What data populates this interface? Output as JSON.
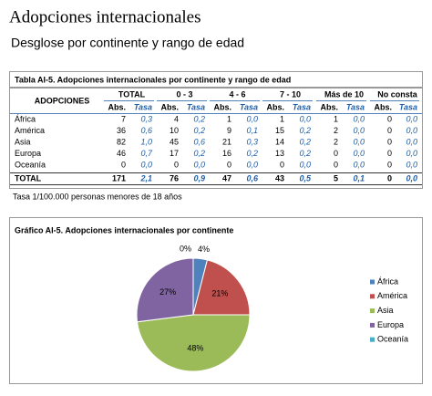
{
  "header": {
    "title": "Adopciones internacionales",
    "subtitle": "Desglose por continente y rango de edad"
  },
  "table": {
    "title": "Tabla AI-5. Adopciones internacionales por continente y rango de edad",
    "row_header": "ADOPCIONES",
    "groups": [
      "TOTAL",
      "0 - 3",
      "4 - 6",
      "7 - 10",
      "Más de 10",
      "No consta"
    ],
    "sub_headers": [
      "Abs.",
      "Tasa"
    ],
    "rows": [
      {
        "label": "África",
        "cells": [
          "7",
          "0,3",
          "4",
          "0,2",
          "1",
          "0,0",
          "1",
          "0,0",
          "1",
          "0,0",
          "0",
          "0,0"
        ]
      },
      {
        "label": "América",
        "cells": [
          "36",
          "0,6",
          "10",
          "0,2",
          "9",
          "0,1",
          "15",
          "0,2",
          "2",
          "0,0",
          "0",
          "0,0"
        ]
      },
      {
        "label": "Asia",
        "cells": [
          "82",
          "1,0",
          "45",
          "0,6",
          "21",
          "0,3",
          "14",
          "0,2",
          "2",
          "0,0",
          "0",
          "0,0"
        ]
      },
      {
        "label": "Europa",
        "cells": [
          "46",
          "0,7",
          "17",
          "0,2",
          "16",
          "0,2",
          "13",
          "0,2",
          "0",
          "0,0",
          "0",
          "0,0"
        ]
      },
      {
        "label": "Oceanía",
        "cells": [
          "0",
          "0,0",
          "0",
          "0,0",
          "0",
          "0,0",
          "0",
          "0,0",
          "0",
          "0,0",
          "0",
          "0,0"
        ]
      }
    ],
    "total": {
      "label": "TOTAL",
      "cells": [
        "171",
        "2,1",
        "76",
        "0,9",
        "47",
        "0,6",
        "43",
        "0,5",
        "5",
        "0,1",
        "0",
        "0,0"
      ]
    },
    "note": "Tasa 1/100.000 personas menores de 18 años"
  },
  "chart_data": {
    "type": "pie",
    "title": "Gráfico AI-5. Adopciones internacionales por continente",
    "categories": [
      "África",
      "América",
      "Asia",
      "Europa",
      "Oceanía"
    ],
    "values": [
      4,
      21,
      48,
      27,
      0
    ],
    "value_labels": [
      "4%",
      "21%",
      "48%",
      "27%",
      "0%"
    ],
    "colors": [
      "#4f81bd",
      "#c0504d",
      "#9bbb59",
      "#8064a2",
      "#4bacc6"
    ],
    "legend": "right"
  }
}
